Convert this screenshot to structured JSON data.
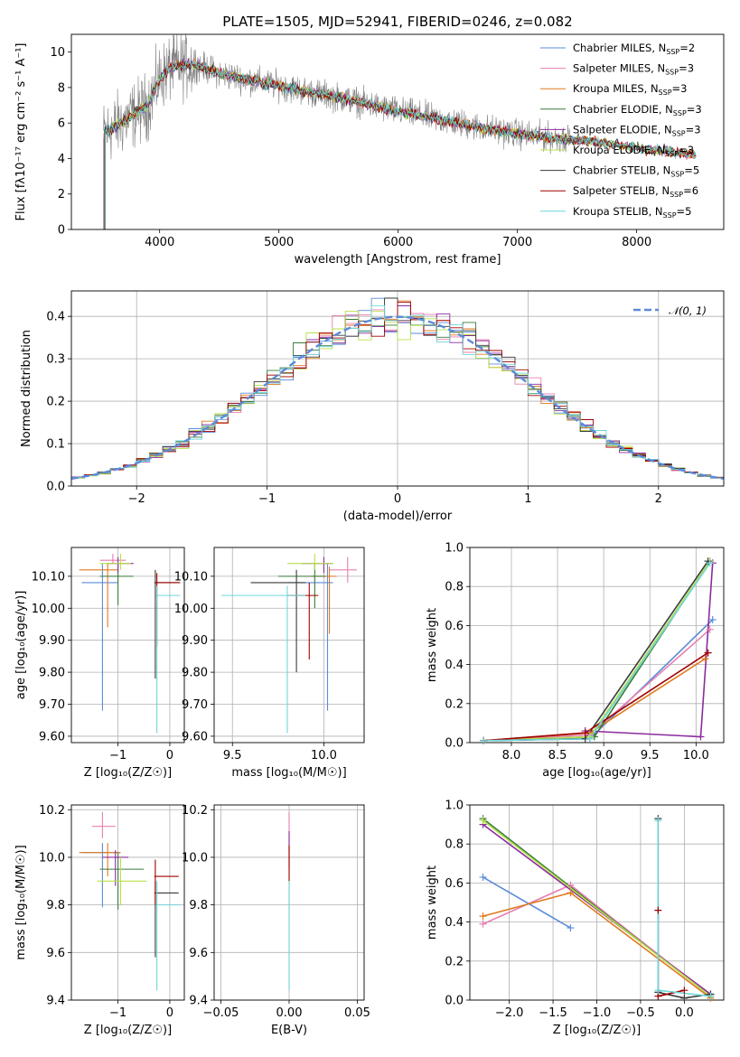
{
  "title": "PLATE=1505, MJD=52941, FIBERID=0246, z=0.082",
  "colors": {
    "chabrier_miles": "#5b8bd9",
    "salpeter_miles": "#e87fb0",
    "kroupa_miles": "#e07a1f",
    "chabrier_elodie": "#3a7a3a",
    "salpeter_elodie": "#8c2b9e",
    "kroupa_elodie": "#b7e04a",
    "chabrier_stelib": "#3a3a3a",
    "salpeter_stelib": "#a00000",
    "kroupa_stelib": "#6fd6d9",
    "data": "#808080",
    "normal_curve": "#5b8bd9",
    "grid": "#b0b0b0"
  },
  "legend_spectrum": [
    {
      "name": "Chabrier MILES",
      "n": "2"
    },
    {
      "name": "Salpeter MILES",
      "n": "3"
    },
    {
      "name": "Kroupa MILES",
      "n": "3"
    },
    {
      "name": "Chabrier ELODIE",
      "n": "3"
    },
    {
      "name": "Salpeter ELODIE",
      "n": "3"
    },
    {
      "name": "Kroupa ELODIE",
      "n": "3"
    },
    {
      "name": "Chabrier STELIB",
      "n": "5"
    },
    {
      "name": "Salpeter STELIB",
      "n": "6"
    },
    {
      "name": "Kroupa STELIB",
      "n": "5"
    }
  ],
  "legend_n_prefix": "N",
  "legend_n_sub": "SSP",
  "legend_normal": "𝒩(0, 1)",
  "chart_data": [
    {
      "id": "spectrum",
      "type": "line",
      "xlabel": "wavelength [Angstrom, rest frame]",
      "ylabel": "Flux [fλ10⁻¹⁷ erg cm⁻² s⁻¹ A⁻¹]",
      "xlim": [
        3260,
        8730
      ],
      "ylim": [
        0,
        11
      ],
      "xticks": [
        4000,
        5000,
        6000,
        7000,
        8000
      ],
      "yticks": [
        0,
        2,
        4,
        6,
        8,
        10
      ],
      "grid": false,
      "legend_position": "top-right",
      "continuum_points": [
        [
          3530,
          5.4
        ],
        [
          3700,
          6.1
        ],
        [
          3900,
          7.0
        ],
        [
          4000,
          8.5
        ],
        [
          4100,
          9.2
        ],
        [
          4300,
          9.3
        ],
        [
          4500,
          8.8
        ],
        [
          4700,
          8.5
        ],
        [
          5000,
          8.1
        ],
        [
          5300,
          7.7
        ],
        [
          5600,
          7.3
        ],
        [
          5900,
          6.8
        ],
        [
          6200,
          6.4
        ],
        [
          6500,
          6.0
        ],
        [
          6800,
          5.6
        ],
        [
          7100,
          5.3
        ],
        [
          7400,
          5.1
        ],
        [
          7700,
          4.9
        ],
        [
          8000,
          4.6
        ],
        [
          8400,
          4.3
        ],
        [
          8500,
          4.2
        ]
      ],
      "data_range": [
        3530,
        7440
      ],
      "model_range": [
        3530,
        8500
      ]
    },
    {
      "id": "residuals",
      "type": "bar",
      "xlabel": "(data-model)/error",
      "ylabel": "Normed distribution",
      "xlim": [
        -2.5,
        2.5
      ],
      "ylim": [
        0,
        0.46
      ],
      "xticks": [
        -2,
        -1,
        0,
        1,
        2
      ],
      "yticks": [
        0.0,
        0.1,
        0.2,
        0.3,
        0.4
      ],
      "grid": true,
      "legend_position": "top-right",
      "bin_width": 0.1,
      "curve": "normal pdf, mean 0, sigma 1"
    },
    {
      "id": "age_vs_z",
      "type": "scatter",
      "xlabel": "Z [log₁₀(Z/Z☉)]",
      "ylabel": "age  [log₁₀(age/yr)]",
      "xlim": [
        -1.9,
        0.28
      ],
      "ylim": [
        9.58,
        10.19
      ],
      "xticks": [
        -1,
        0
      ],
      "yticks": [
        9.6,
        9.7,
        9.8,
        9.9,
        10.0,
        10.1
      ],
      "grid": true,
      "points": [
        {
          "series": "chabrier_miles",
          "x": -1.3,
          "xerr": [
            0.4,
            0.3
          ],
          "y": 10.08,
          "yerr": [
            0.4,
            0.06
          ]
        },
        {
          "series": "salpeter_miles",
          "x": -1.1,
          "xerr": [
            0.25,
            0.25
          ],
          "y": 10.15,
          "yerr": [
            0.01,
            0.02
          ]
        },
        {
          "series": "kroupa_miles",
          "x": -1.2,
          "xerr": [
            0.55,
            0.2
          ],
          "y": 10.12,
          "yerr": [
            0.18,
            0.02
          ]
        },
        {
          "series": "chabrier_elodie",
          "x": -1.0,
          "xerr": [
            0.35,
            0.3
          ],
          "y": 10.1,
          "yerr": [
            0.09,
            0.04
          ]
        },
        {
          "series": "salpeter_elodie",
          "x": -1.0,
          "xerr": [
            0.2,
            0.3
          ],
          "y": 10.14,
          "yerr": [
            0.03,
            0.02
          ]
        },
        {
          "series": "kroupa_elodie",
          "x": -0.95,
          "xerr": [
            0.4,
            0.2
          ],
          "y": 10.14,
          "yerr": [
            0.02,
            0.03
          ]
        },
        {
          "series": "chabrier_stelib",
          "x": -0.28,
          "xerr": [
            0.02,
            0.45
          ],
          "y": 10.08,
          "yerr": [
            0.3,
            0.04
          ]
        },
        {
          "series": "salpeter_stelib",
          "x": -0.25,
          "xerr": [
            0.02,
            0.45
          ],
          "y": 10.08,
          "yerr": [
            0.2,
            0.03
          ]
        },
        {
          "series": "kroupa_stelib",
          "x": -0.25,
          "xerr": [
            0.02,
            0.45
          ],
          "y": 10.04,
          "yerr": [
            0.43,
            0.03
          ]
        }
      ]
    },
    {
      "id": "age_vs_mass",
      "type": "scatter",
      "xlabel": "mass [log₁₀(M/M☉)]",
      "ylabel": "",
      "xlim": [
        9.4,
        10.22
      ],
      "ylim": [
        9.58,
        10.19
      ],
      "xticks": [
        9.5,
        10.0
      ],
      "yticks": [
        9.6,
        9.7,
        9.8,
        9.9,
        10.0,
        10.1
      ],
      "grid": true,
      "points": [
        {
          "series": "chabrier_miles",
          "x": 10.02,
          "xerr": [
            0.22,
            0.03
          ],
          "y": 10.08,
          "yerr": [
            0.4,
            0.06
          ]
        },
        {
          "series": "salpeter_miles",
          "x": 10.13,
          "xerr": [
            0.1,
            0.05
          ],
          "y": 10.12,
          "yerr": [
            0.04,
            0.04
          ]
        },
        {
          "series": "kroupa_miles",
          "x": 10.03,
          "xerr": [
            0.1,
            0.04
          ],
          "y": 10.1,
          "yerr": [
            0.18,
            0.03
          ]
        },
        {
          "series": "chabrier_elodie",
          "x": 9.95,
          "xerr": [
            0.2,
            0.06
          ],
          "y": 10.1,
          "yerr": [
            0.1,
            0.04
          ]
        },
        {
          "series": "salpeter_elodie",
          "x": 10.0,
          "xerr": [
            0.12,
            0.05
          ],
          "y": 10.14,
          "yerr": [
            0.03,
            0.02
          ]
        },
        {
          "series": "kroupa_elodie",
          "x": 9.95,
          "xerr": [
            0.15,
            0.1
          ],
          "y": 10.14,
          "yerr": [
            0.02,
            0.03
          ]
        },
        {
          "series": "chabrier_stelib",
          "x": 9.85,
          "xerr": [
            0.25,
            0.05
          ],
          "y": 10.08,
          "yerr": [
            0.28,
            0.04
          ]
        },
        {
          "series": "salpeter_stelib",
          "x": 9.92,
          "xerr": [
            0.12,
            0.05
          ],
          "y": 10.04,
          "yerr": [
            0.2,
            0.04
          ]
        },
        {
          "series": "kroupa_stelib",
          "x": 9.8,
          "xerr": [
            0.36,
            0.1
          ],
          "y": 10.04,
          "yerr": [
            0.43,
            0.03
          ]
        }
      ]
    },
    {
      "id": "weight_vs_age",
      "type": "line",
      "xlabel": "age  [log₁₀(age/yr)]",
      "ylabel": "mass weight",
      "xlim": [
        7.55,
        10.3
      ],
      "ylim": [
        0,
        1.0
      ],
      "xticks": [
        8.0,
        8.5,
        9.0,
        9.5,
        10.0
      ],
      "yticks": [
        0.0,
        0.2,
        0.4,
        0.6,
        0.8,
        1.0
      ],
      "grid": true,
      "series": [
        {
          "series": "chabrier_miles",
          "x": [
            7.7,
            8.85,
            10.18
          ],
          "y": [
            0.01,
            0.02,
            0.63
          ]
        },
        {
          "series": "salpeter_miles",
          "x": [
            7.7,
            8.85,
            10.15
          ],
          "y": [
            0.01,
            0.04,
            0.58
          ]
        },
        {
          "series": "kroupa_miles",
          "x": [
            7.7,
            8.85,
            10.1
          ],
          "y": [
            0.01,
            0.05,
            0.43
          ]
        },
        {
          "series": "chabrier_elodie",
          "x": [
            7.7,
            8.9,
            10.15
          ],
          "y": [
            0.01,
            0.03,
            0.93
          ]
        },
        {
          "series": "salpeter_elodie",
          "x": [
            8.8,
            10.05,
            10.18
          ],
          "y": [
            0.06,
            0.03,
            0.92
          ]
        },
        {
          "series": "kroupa_elodie",
          "x": [
            7.7,
            8.85,
            10.15
          ],
          "y": [
            0.01,
            0.03,
            0.93
          ]
        },
        {
          "series": "chabrier_stelib",
          "x": [
            7.7,
            8.8,
            10.13
          ],
          "y": [
            0.01,
            0.02,
            0.93
          ]
        },
        {
          "series": "salpeter_stelib",
          "x": [
            7.7,
            8.8,
            10.13
          ],
          "y": [
            0.01,
            0.05,
            0.46
          ]
        },
        {
          "series": "kroupa_stelib",
          "x": [
            7.7,
            8.85,
            10.15
          ],
          "y": [
            0.01,
            0.02,
            0.92
          ]
        }
      ]
    },
    {
      "id": "mass_vs_z",
      "type": "scatter",
      "xlabel": "Z [log₁₀(Z/Z☉)]",
      "ylabel": "mass [log₁₀(M/M☉)]",
      "xlim": [
        -1.9,
        0.28
      ],
      "ylim": [
        9.4,
        10.22
      ],
      "xticks": [
        -1,
        0
      ],
      "yticks": [
        9.4,
        9.6,
        9.8,
        10.0,
        10.2
      ],
      "grid": true,
      "points": [
        {
          "series": "chabrier_miles",
          "x": -1.3,
          "xerr": [
            0.4,
            0.35
          ],
          "y": 10.02,
          "yerr": [
            0.23,
            0.04
          ]
        },
        {
          "series": "salpeter_miles",
          "x": -1.3,
          "xerr": [
            0.2,
            0.25
          ],
          "y": 10.13,
          "yerr": [
            0.05,
            0.06
          ]
        },
        {
          "series": "kroupa_miles",
          "x": -1.2,
          "xerr": [
            0.55,
            0.25
          ],
          "y": 10.02,
          "yerr": [
            0.1,
            0.04
          ]
        },
        {
          "series": "chabrier_elodie",
          "x": -1.0,
          "xerr": [
            0.35,
            0.5
          ],
          "y": 9.95,
          "yerr": [
            0.17,
            0.07
          ]
        },
        {
          "series": "salpeter_elodie",
          "x": -1.05,
          "xerr": [
            0.25,
            0.25
          ],
          "y": 10.0,
          "yerr": [
            0.12,
            0.03
          ]
        },
        {
          "series": "kroupa_elodie",
          "x": -0.95,
          "xerr": [
            0.45,
            0.5
          ],
          "y": 9.9,
          "yerr": [
            0.1,
            0.1
          ]
        },
        {
          "series": "chabrier_stelib",
          "x": -0.28,
          "xerr": [
            0.02,
            0.45
          ],
          "y": 9.85,
          "yerr": [
            0.27,
            0.05
          ]
        },
        {
          "series": "salpeter_stelib",
          "x": -0.28,
          "xerr": [
            0.02,
            0.45
          ],
          "y": 9.92,
          "yerr": [
            0.12,
            0.07
          ]
        },
        {
          "series": "kroupa_stelib",
          "x": -0.25,
          "xerr": [
            0.02,
            0.45
          ],
          "y": 9.8,
          "yerr": [
            0.36,
            0.1
          ]
        }
      ]
    },
    {
      "id": "mass_vs_ebv",
      "type": "scatter",
      "xlabel": "E(B-V)",
      "ylabel": "",
      "xlim": [
        -0.055,
        0.055
      ],
      "ylim": [
        9.4,
        10.22
      ],
      "xticks": [
        -0.05,
        0.0,
        0.05
      ],
      "yticks": [
        9.4,
        9.6,
        9.8,
        10.0,
        10.2
      ],
      "grid": true,
      "points": [
        {
          "series": "salpeter_miles",
          "x": 0.0,
          "xerr": [
            0,
            0
          ],
          "y": 10.12,
          "yerr": [
            0.1,
            0.07
          ]
        },
        {
          "series": "salpeter_elodie",
          "x": 0.0,
          "xerr": [
            0,
            0
          ],
          "y": 10.05,
          "yerr": [
            0.1,
            0.06
          ]
        },
        {
          "series": "kroupa_elodie",
          "x": 0.0,
          "xerr": [
            0,
            0
          ],
          "y": 9.95,
          "yerr": [
            0.2,
            0.1
          ]
        },
        {
          "series": "salpeter_stelib",
          "x": 0.0,
          "xerr": [
            0,
            0
          ],
          "y": 9.95,
          "yerr": [
            0.05,
            0.1
          ]
        },
        {
          "series": "kroupa_stelib",
          "x": 0.0,
          "xerr": [
            0,
            0
          ],
          "y": 9.8,
          "yerr": [
            0.36,
            0.1
          ]
        }
      ]
    },
    {
      "id": "weight_vs_z",
      "type": "line",
      "xlabel": "Z [log₁₀(Z/Z☉)]",
      "ylabel": "mass weight",
      "xlim": [
        -2.45,
        0.45
      ],
      "ylim": [
        0,
        1.0
      ],
      "xticks": [
        -2.0,
        -1.5,
        -1.0,
        -0.5,
        0.0
      ],
      "yticks": [
        0.0,
        0.2,
        0.4,
        0.6,
        0.8,
        1.0
      ],
      "grid": true,
      "series": [
        {
          "series": "chabrier_miles",
          "x": [
            -2.3,
            -1.3
          ],
          "y": [
            0.63,
            0.37
          ]
        },
        {
          "series": "salpeter_miles",
          "x": [
            -2.3,
            -1.3,
            0.3
          ],
          "y": [
            0.39,
            0.59,
            0.02
          ]
        },
        {
          "series": "kroupa_miles",
          "x": [
            -2.3,
            -1.3,
            0.3
          ],
          "y": [
            0.43,
            0.55,
            0.01
          ]
        },
        {
          "series": "chabrier_elodie",
          "x": [
            -2.3,
            0.3
          ],
          "y": [
            0.93,
            0.02
          ]
        },
        {
          "series": "salpeter_elodie",
          "x": [
            -2.3,
            0.3
          ],
          "y": [
            0.9,
            0.03
          ]
        },
        {
          "series": "kroupa_elodie",
          "x": [
            -2.3,
            0.3
          ],
          "y": [
            0.92,
            0.02
          ]
        },
        {
          "series": "chabrier_stelib",
          "x": [
            -0.3,
            -0.3,
            0.0,
            0.3
          ],
          "y": [
            0.93,
            0.04,
            0.01,
            0.03
          ]
        },
        {
          "series": "salpeter_stelib",
          "x": [
            -0.3,
            -0.3,
            0.0
          ],
          "y": [
            0.46,
            0.02,
            0.05
          ]
        },
        {
          "series": "kroupa_stelib",
          "x": [
            -0.3,
            -0.3,
            0.3
          ],
          "y": [
            0.92,
            0.05,
            0.02
          ]
        }
      ]
    }
  ]
}
